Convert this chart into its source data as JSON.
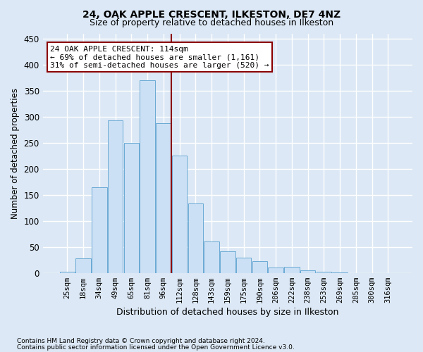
{
  "title1": "24, OAK APPLE CRESCENT, ILKESTON, DE7 4NZ",
  "title2": "Size of property relative to detached houses in Ilkeston",
  "xlabel": "Distribution of detached houses by size in Ilkeston",
  "ylabel": "Number of detached properties",
  "categories": [
    "25sqm",
    "18sqm",
    "34sqm",
    "49sqm",
    "65sqm",
    "81sqm",
    "96sqm",
    "112sqm",
    "128sqm",
    "143sqm",
    "159sqm",
    "175sqm",
    "190sqm",
    "206sqm",
    "222sqm",
    "238sqm",
    "253sqm",
    "269sqm",
    "285sqm",
    "300sqm",
    "316sqm"
  ],
  "values": [
    2,
    28,
    165,
    293,
    250,
    370,
    288,
    225,
    133,
    61,
    42,
    29,
    22,
    10,
    12,
    5,
    2,
    1,
    0,
    0,
    0
  ],
  "bar_color": "#cce0f5",
  "bar_edge_color": "#6aaad4",
  "vline_x": 6.5,
  "vline_color": "#8b0000",
  "annotation_text": "24 OAK APPLE CRESCENT: 114sqm\n← 69% of detached houses are smaller (1,161)\n31% of semi-detached houses are larger (520) →",
  "annotation_box_color": "#ffffff",
  "annotation_box_edge": "#8b0000",
  "footnote1": "Contains HM Land Registry data © Crown copyright and database right 2024.",
  "footnote2": "Contains public sector information licensed under the Open Government Licence v3.0.",
  "bg_color": "#dce8f5",
  "ylim": [
    0,
    460
  ],
  "yticks": [
    0,
    50,
    100,
    150,
    200,
    250,
    300,
    350,
    400,
    450
  ]
}
